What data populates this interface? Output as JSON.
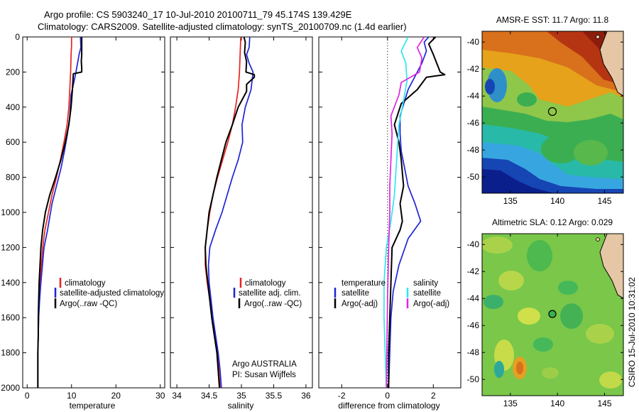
{
  "title_line1": "Argo profile: CS 5903240_17 10-Jul-2010 20100711_79 45.174S 139.429E",
  "title_line2": "Climatology: CARS2009. Satellite-adjusted climatology: synTS_20100709.nc (1.4d earlier)",
  "credit": "Argo AUSTRALIA",
  "pi": "PI: Susan Wijffels",
  "stamp": "CSIRO 15-Jul-2010 10:31:02",
  "colors": {
    "red": "#e8231f",
    "blue": "#1f24d6",
    "black": "#000000",
    "cyan": "#2ee6f0",
    "magenta": "#e024e0"
  },
  "chart_data": [
    {
      "type": "line",
      "xlabel": "temperature",
      "ylim": [
        2000,
        0
      ],
      "xlim": [
        -1,
        31
      ],
      "x_ticks": [
        0,
        10,
        20,
        30
      ],
      "y_ticks": [
        0,
        200,
        400,
        600,
        800,
        1000,
        1200,
        1400,
        1600,
        1800,
        2000
      ],
      "legend": [
        "climatology",
        "satellite-adjusted climatology",
        "Argo(..raw -QC)"
      ],
      "series": [
        {
          "name": "climatology",
          "color": "red",
          "points": [
            [
              10,
              0
            ],
            [
              10,
              50
            ],
            [
              9.9,
              100
            ],
            [
              9.8,
              200
            ],
            [
              9.6,
              300
            ],
            [
              9.4,
              400
            ],
            [
              9.0,
              500
            ],
            [
              8.3,
              600
            ],
            [
              7.5,
              700
            ],
            [
              6.6,
              800
            ],
            [
              5.6,
              900
            ],
            [
              4.8,
              1000
            ],
            [
              4.0,
              1100
            ],
            [
              3.5,
              1200
            ],
            [
              3.2,
              1300
            ],
            [
              2.9,
              1400
            ],
            [
              2.7,
              1500
            ],
            [
              2.6,
              1600
            ],
            [
              2.5,
              1700
            ],
            [
              2.4,
              1800
            ],
            [
              2.4,
              1900
            ],
            [
              2.4,
              2000
            ]
          ]
        },
        {
          "name": "satellite-adjusted climatology",
          "color": "blue",
          "points": [
            [
              12,
              0
            ],
            [
              12.1,
              60
            ],
            [
              11.7,
              100
            ],
            [
              11.0,
              200
            ],
            [
              10.6,
              250
            ],
            [
              9.9,
              330
            ],
            [
              9.6,
              450
            ],
            [
              9.1,
              550
            ],
            [
              8.4,
              650
            ],
            [
              7.6,
              750
            ],
            [
              6.6,
              850
            ],
            [
              5.6,
              950
            ],
            [
              4.6,
              1100
            ],
            [
              3.8,
              1200
            ],
            [
              3.1,
              1400
            ],
            [
              2.8,
              1500
            ],
            [
              2.6,
              1600
            ],
            [
              2.5,
              1700
            ],
            [
              2.4,
              1800
            ],
            [
              2.4,
              2000
            ]
          ]
        },
        {
          "name": "Argo(..raw -QC)",
          "color": "black",
          "points": [
            [
              12.3,
              0
            ],
            [
              12.3,
              100
            ],
            [
              12.2,
              140
            ],
            [
              12.3,
              175
            ],
            [
              12.3,
              200
            ],
            [
              10.4,
              210
            ],
            [
              10.2,
              300
            ],
            [
              9.9,
              400
            ],
            [
              9.4,
              500
            ],
            [
              8.6,
              600
            ],
            [
              7.6,
              700
            ],
            [
              6.4,
              800
            ],
            [
              5.1,
              900
            ],
            [
              4.1,
              1000
            ],
            [
              3.5,
              1100
            ],
            [
              3.1,
              1200
            ],
            [
              2.9,
              1300
            ],
            [
              2.7,
              1400
            ],
            [
              2.6,
              1500
            ],
            [
              2.5,
              1600
            ],
            [
              2.5,
              1700
            ],
            [
              2.4,
              1800
            ],
            [
              2.4,
              2000
            ]
          ]
        }
      ]
    },
    {
      "type": "line",
      "xlabel": "salinity",
      "ylim": [
        2000,
        0
      ],
      "xlim": [
        33.9,
        36.1
      ],
      "x_ticks": [
        34,
        34.5,
        35,
        35.5,
        36
      ],
      "x_tick_labels": [
        "34",
        "34.5",
        "35",
        "35.5",
        "36"
      ],
      "legend": [
        "climatology",
        "satellite adj. clim.",
        "Argo(..raw -QC)"
      ],
      "series": [
        {
          "name": "climatology",
          "color": "red",
          "points": [
            [
              34.99,
              0
            ],
            [
              34.98,
              100
            ],
            [
              34.97,
              200
            ],
            [
              34.95,
              300
            ],
            [
              34.91,
              400
            ],
            [
              34.86,
              500
            ],
            [
              34.79,
              600
            ],
            [
              34.71,
              700
            ],
            [
              34.63,
              800
            ],
            [
              34.56,
              900
            ],
            [
              34.51,
              1000
            ],
            [
              34.47,
              1100
            ],
            [
              34.44,
              1200
            ],
            [
              34.44,
              1300
            ],
            [
              34.47,
              1400
            ],
            [
              34.51,
              1500
            ],
            [
              34.55,
              1600
            ],
            [
              34.59,
              1700
            ],
            [
              34.63,
              1800
            ],
            [
              34.65,
              1900
            ],
            [
              34.67,
              2000
            ]
          ]
        },
        {
          "name": "satellite adj. clim.",
          "color": "blue",
          "points": [
            [
              35.13,
              0
            ],
            [
              35.12,
              60
            ],
            [
              35.08,
              100
            ],
            [
              35.12,
              150
            ],
            [
              35.18,
              200
            ],
            [
              35.15,
              300
            ],
            [
              35.06,
              400
            ],
            [
              35.01,
              500
            ],
            [
              35.02,
              600
            ],
            [
              34.95,
              700
            ],
            [
              34.86,
              800
            ],
            [
              34.78,
              900
            ],
            [
              34.7,
              1000
            ],
            [
              34.6,
              1100
            ],
            [
              34.51,
              1200
            ],
            [
              34.49,
              1300
            ],
            [
              34.5,
              1400
            ],
            [
              34.53,
              1500
            ],
            [
              34.56,
              1600
            ],
            [
              34.6,
              1700
            ],
            [
              34.64,
              1800
            ],
            [
              34.67,
              1900
            ],
            [
              34.69,
              2000
            ]
          ]
        },
        {
          "name": "Argo(..raw -QC)",
          "color": "black",
          "points": [
            [
              35.04,
              0
            ],
            [
              35.06,
              30
            ],
            [
              35.05,
              90
            ],
            [
              35.08,
              140
            ],
            [
              35.07,
              200
            ],
            [
              35.2,
              215
            ],
            [
              35.2,
              230
            ],
            [
              35.08,
              270
            ],
            [
              35.08,
              310
            ],
            [
              34.95,
              400
            ],
            [
              34.86,
              500
            ],
            [
              34.76,
              600
            ],
            [
              34.69,
              700
            ],
            [
              34.62,
              800
            ],
            [
              34.56,
              900
            ],
            [
              34.5,
              1000
            ],
            [
              34.47,
              1100
            ],
            [
              34.44,
              1200
            ],
            [
              34.45,
              1300
            ],
            [
              34.48,
              1400
            ],
            [
              34.51,
              1500
            ],
            [
              34.54,
              1600
            ],
            [
              34.58,
              1700
            ],
            [
              34.62,
              1800
            ],
            [
              34.64,
              1900
            ],
            [
              34.66,
              2000
            ]
          ]
        }
      ]
    },
    {
      "type": "line",
      "xlabel": "difference from climatology",
      "ylim": [
        2000,
        0
      ],
      "xlim": [
        -3,
        3.2
      ],
      "x_ticks": [
        -2,
        0,
        2
      ],
      "zero_line": "dotted",
      "legend_left": [
        "temperature",
        "satellite",
        "Argo(-adj)"
      ],
      "legend_right": [
        "salinity",
        "satellite",
        "Argo(-adj)"
      ],
      "series": [
        {
          "name": "temperature satellite",
          "color": "blue",
          "points": [
            [
              1.8,
              0
            ],
            [
              1.6,
              30
            ],
            [
              1.7,
              80
            ],
            [
              1.5,
              150
            ],
            [
              0.9,
              300
            ],
            [
              0.55,
              450
            ],
            [
              0.55,
              550
            ],
            [
              0.6,
              650
            ],
            [
              0.75,
              750
            ],
            [
              0.9,
              850
            ],
            [
              1.2,
              950
            ],
            [
              1.45,
              1050
            ],
            [
              0.9,
              1150
            ],
            [
              0.5,
              1300
            ],
            [
              0.25,
              1450
            ],
            [
              0.15,
              1600
            ],
            [
              0.1,
              1800
            ],
            [
              0.05,
              2000
            ]
          ]
        },
        {
          "name": "temperature Argo(-adj)",
          "color": "black",
          "points": [
            [
              2.1,
              0
            ],
            [
              1.8,
              40
            ],
            [
              2.0,
              100
            ],
            [
              2.3,
              200
            ],
            [
              2.5,
              215
            ],
            [
              1.7,
              230
            ],
            [
              1.3,
              300
            ],
            [
              0.6,
              380
            ],
            [
              0.3,
              500
            ],
            [
              0.5,
              600
            ],
            [
              0.6,
              700
            ],
            [
              0.7,
              850
            ],
            [
              0.55,
              950
            ],
            [
              0.65,
              1050
            ],
            [
              0.55,
              1100
            ],
            [
              0.2,
              1200
            ],
            [
              0.15,
              1400
            ],
            [
              0.1,
              1600
            ],
            [
              0.05,
              1800
            ],
            [
              0.05,
              2000
            ]
          ]
        },
        {
          "name": "salinity satellite",
          "color": "cyan",
          "points": [
            [
              0.9,
              0
            ],
            [
              0.6,
              80
            ],
            [
              0.8,
              150
            ],
            [
              0.85,
              250
            ],
            [
              0.65,
              400
            ],
            [
              0.5,
              500
            ],
            [
              0.45,
              600
            ],
            [
              0.4,
              700
            ],
            [
              0.35,
              800
            ],
            [
              0.3,
              900
            ],
            [
              0.15,
              1050
            ],
            [
              -0.05,
              1200
            ],
            [
              -0.15,
              1400
            ],
            [
              -0.15,
              1600
            ],
            [
              -0.1,
              1800
            ],
            [
              -0.05,
              2000
            ]
          ]
        },
        {
          "name": "salinity Argo(-adj)",
          "color": "magenta",
          "points": [
            [
              1.6,
              0
            ],
            [
              1.3,
              60
            ],
            [
              1.5,
              120
            ],
            [
              1.4,
              200
            ],
            [
              0.6,
              260
            ],
            [
              0.5,
              330
            ],
            [
              0.15,
              450
            ],
            [
              0.2,
              550
            ],
            [
              0.15,
              700
            ],
            [
              0.1,
              850
            ],
            [
              0.1,
              1000
            ],
            [
              0.05,
              1200
            ],
            [
              0.0,
              1500
            ],
            [
              -0.05,
              2000
            ]
          ]
        }
      ]
    }
  ],
  "maps": [
    {
      "title": "AMSR-E SST: 11.7 Argo: 11.8",
      "x_ticks": [
        135,
        140,
        145
      ],
      "y_ticks": [
        -40,
        -42,
        -44,
        -46,
        -48,
        -50
      ],
      "xlim": [
        132,
        147
      ],
      "ylim": [
        -51.2,
        -39.2
      ],
      "marker": {
        "lon": 139.43,
        "lat": -45.17,
        "style": "open-circle"
      }
    },
    {
      "title": "Altimetric SLA: 0.12 Argo: 0.029",
      "x_ticks": [
        135,
        140,
        145
      ],
      "y_ticks": [
        -40,
        -42,
        -44,
        -46,
        -48,
        -50
      ],
      "xlim": [
        132,
        147
      ],
      "ylim": [
        -51.2,
        -39.2
      ],
      "marker": {
        "lon": 139.43,
        "lat": -45.17,
        "style": "filled-green-circle"
      }
    }
  ]
}
